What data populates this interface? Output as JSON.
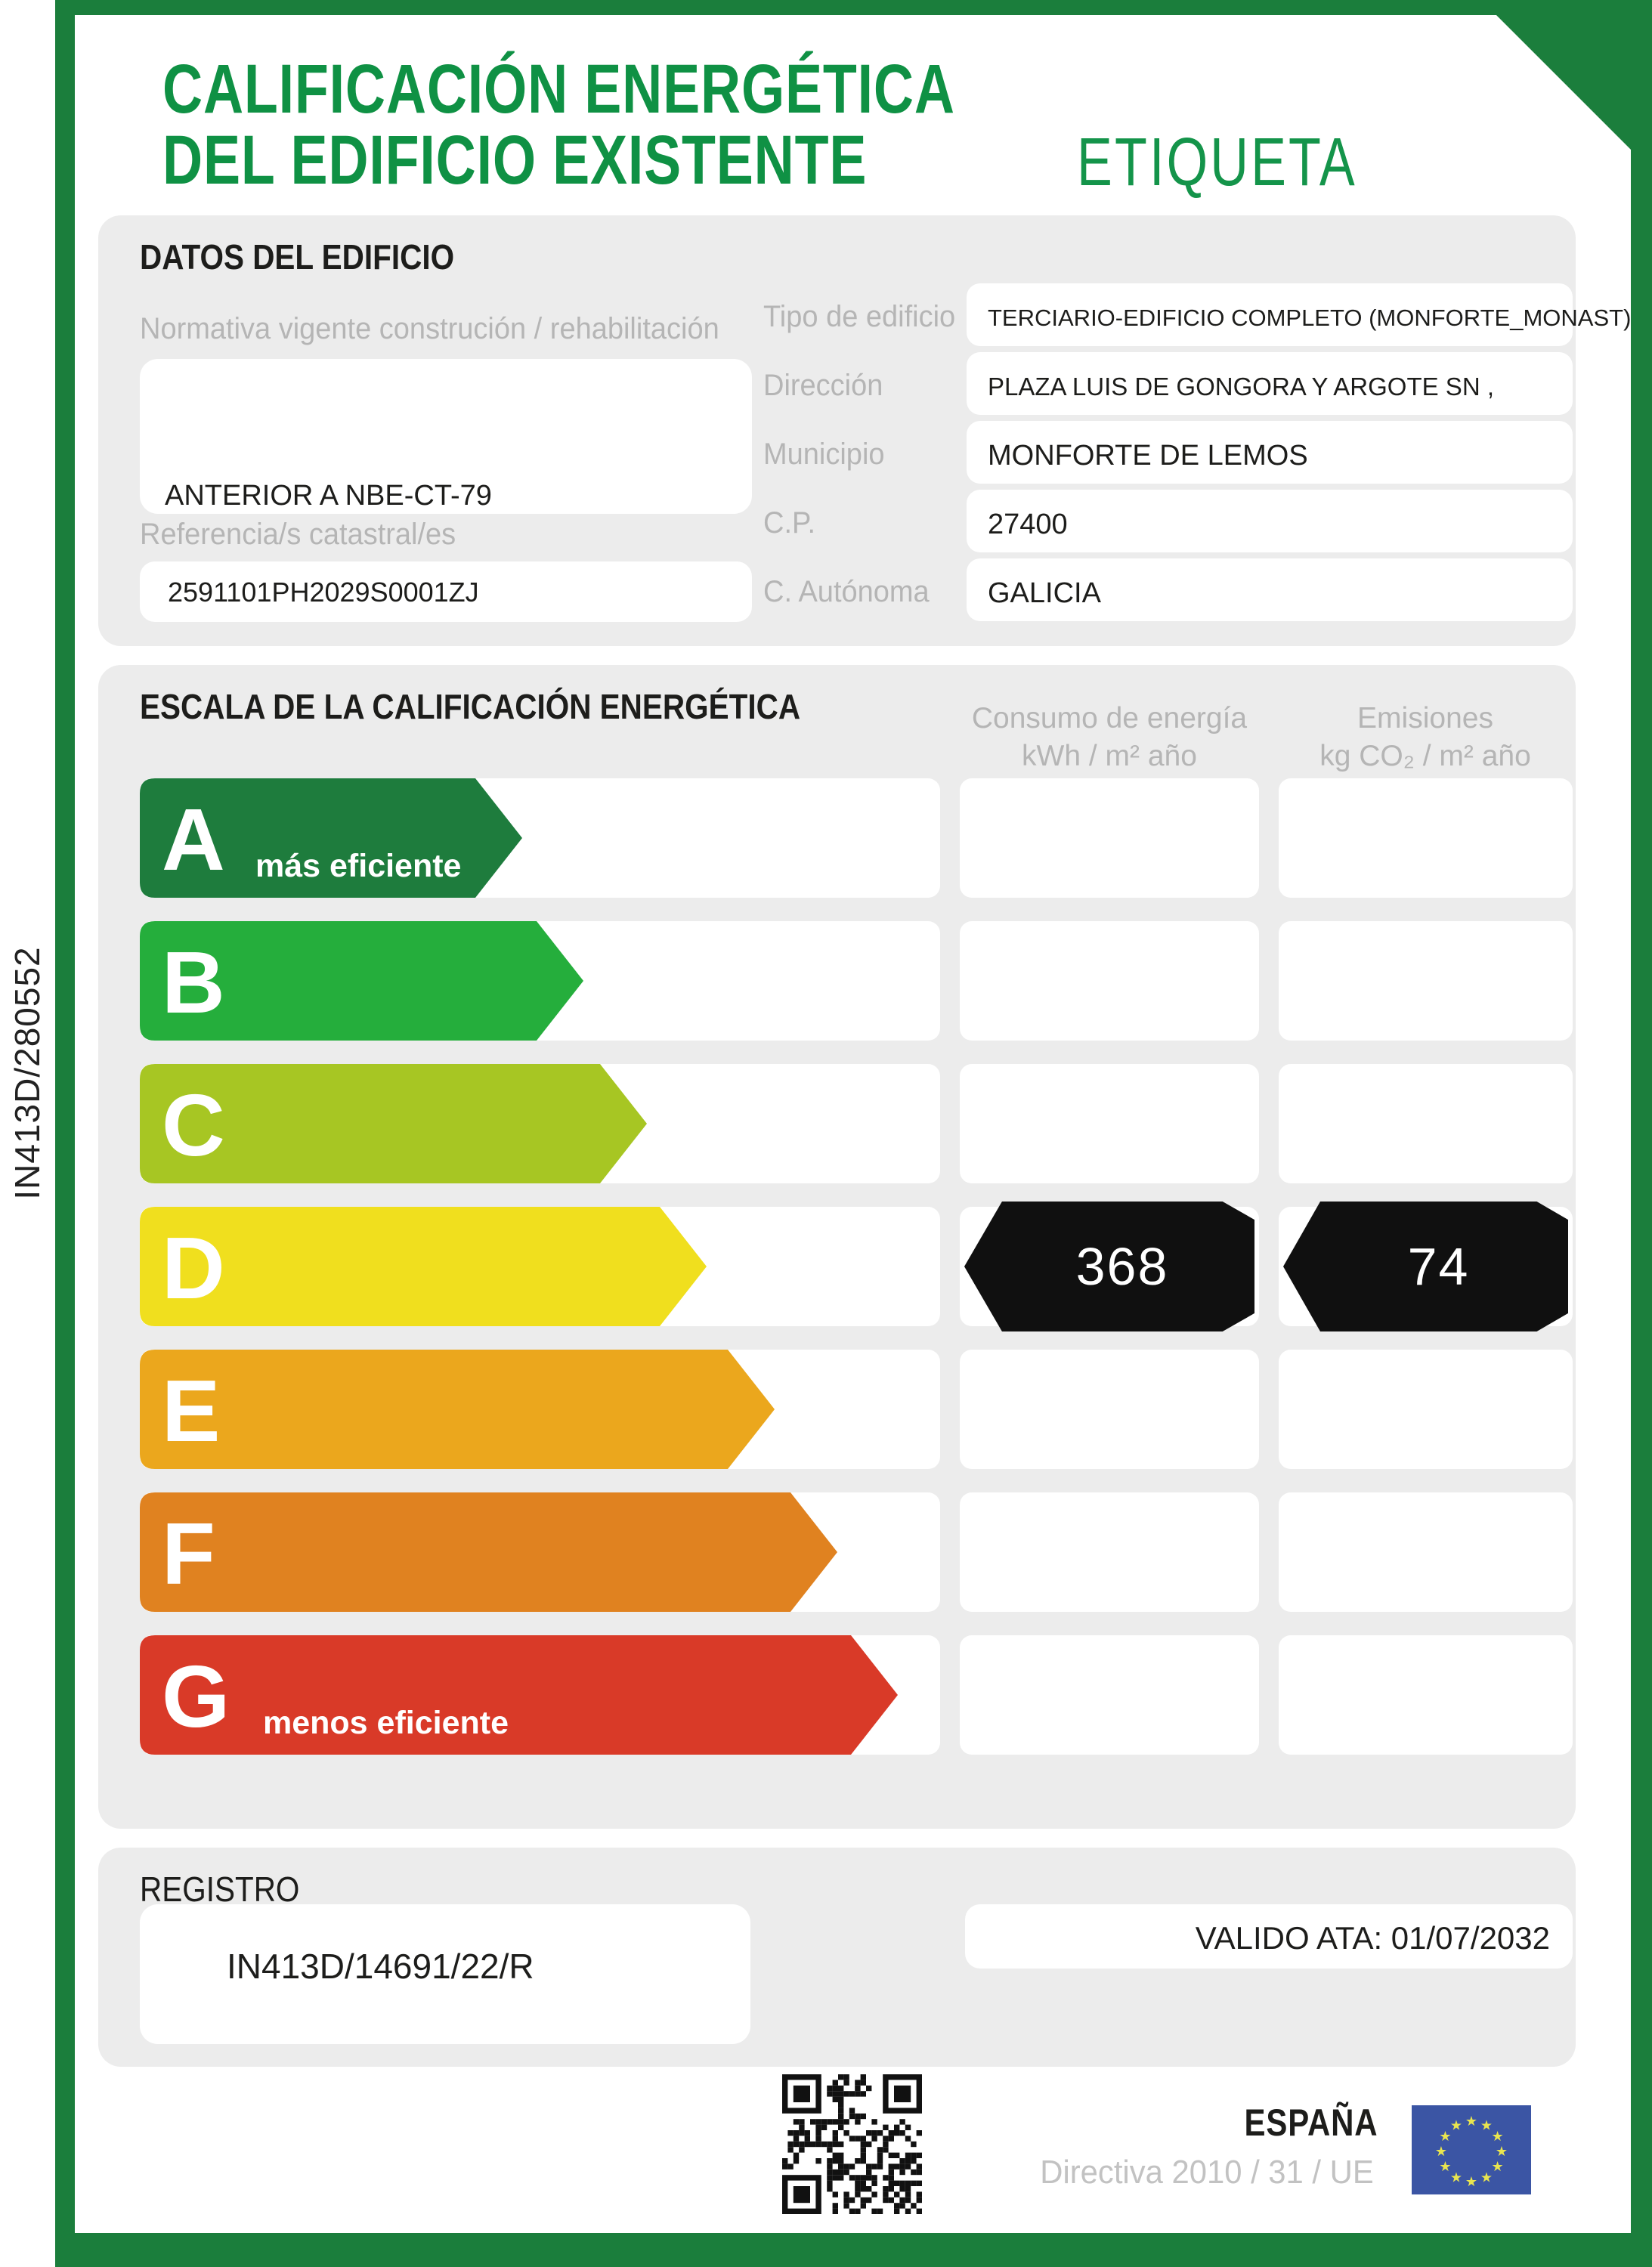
{
  "page": {
    "side_ref": "IN413D/280552",
    "title_line1": "CALIFICACIÓN ENERGÉTICA",
    "title_line2": "DEL EDIFICIO EXISTENTE",
    "title_right": "ETIQUETA"
  },
  "colors": {
    "frame_green": "#1b7e3c",
    "title_green": "#0f9144",
    "panel_gray": "#ececec",
    "label_gray": "#b5b5b5",
    "rating_black": "#101010",
    "eu_blue": "#3b55a4",
    "eu_star_yellow": "#e9e54f"
  },
  "building": {
    "section_title": "DATOS DEL EDIFICIO",
    "normativa_label": "Normativa vigente construción / rehabilitación",
    "normativa_value": "ANTERIOR A NBE-CT-79",
    "referencia_label": "Referencia/s catastral/es",
    "referencia_value": "2591101PH2029S0001ZJ",
    "fields": [
      {
        "label": "Tipo de edificio",
        "value": "TERCIARIO-EDIFICIO COMPLETO (MONFORTE_MONAST)",
        "size": 31
      },
      {
        "label": "Dirección",
        "value": "PLAZA LUIS DE GONGORA Y ARGOTE SN ,",
        "size": 33
      },
      {
        "label": "Municipio",
        "value": "MONFORTE DE LEMOS",
        "size": 38
      },
      {
        "label": "C.P.",
        "value": "27400",
        "size": 38
      },
      {
        "label": "C. Autónoma",
        "value": "GALICIA",
        "size": 38
      }
    ]
  },
  "scale": {
    "section_title": "ESCALA DE LA CALIFICACIÓN ENERGÉTICA",
    "consumo_header_line1": "Consumo de energía",
    "consumo_header_line2": "kWh / m² año",
    "emisiones_header_line1": "Emisiones",
    "emisiones_header_line2": "kg CO₂ / m² año",
    "rows": [
      {
        "letter": "A",
        "note": "más eficiente",
        "color": "#1e7c3d",
        "width_pct": 47.8
      },
      {
        "letter": "B",
        "note": "",
        "color": "#25ae3c",
        "width_pct": 55.4
      },
      {
        "letter": "C",
        "note": "",
        "color": "#a7c623",
        "width_pct": 63.4
      },
      {
        "letter": "D",
        "note": "",
        "color": "#f0df1e",
        "width_pct": 70.8
      },
      {
        "letter": "E",
        "note": "",
        "color": "#eba71d",
        "width_pct": 79.3
      },
      {
        "letter": "F",
        "note": "",
        "color": "#e08220",
        "width_pct": 87.2
      },
      {
        "letter": "G",
        "note": "menos eficiente",
        "color": "#d93a28",
        "width_pct": 94.7
      }
    ],
    "rating": {
      "letter": "D",
      "consumo": "368",
      "emisiones": "74"
    }
  },
  "registro": {
    "section_title": "REGISTRO",
    "number": "IN413D/14691/22/R",
    "valid_until": "VALIDO ATA: 01/07/2032"
  },
  "footer": {
    "country": "ESPAÑA",
    "directive": "Directiva 2010 / 31 / UE"
  }
}
